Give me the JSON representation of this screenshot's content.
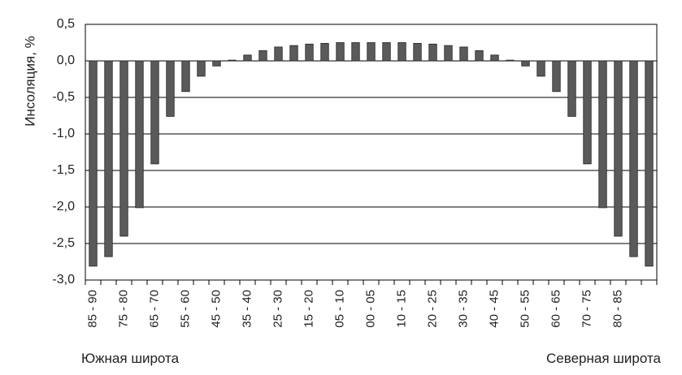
{
  "chart_data": {
    "type": "bar",
    "title": "",
    "ylabel": "Инсоляция, %",
    "xlabel": "",
    "ylim": [
      -3.0,
      0.5
    ],
    "yticks": [
      0.5,
      0.0,
      -0.5,
      -1.0,
      -1.5,
      -2.0,
      -2.5,
      -3.0
    ],
    "ytick_labels": [
      "0,5",
      "0,0",
      "-0,5",
      "-1,0",
      "-1,5",
      "-2,0",
      "-2,5",
      "-3,0"
    ],
    "grid": true,
    "bar_color": "#5a5a5a",
    "tick_labels": [
      "85 - 90",
      "75 - 80",
      "65 - 70",
      "55 - 60",
      "45 - 50",
      "35 - 40",
      "25 - 30",
      "15 - 20",
      "05 - 10",
      "00 - 05",
      "10 - 15",
      "20 - 25",
      "30 - 35",
      "40 - 45",
      "50 - 55",
      "60 - 65",
      "70 - 75",
      "80 - 85"
    ],
    "values": [
      -2.81,
      -2.68,
      -2.4,
      -2.01,
      -1.41,
      -0.76,
      -0.42,
      -0.21,
      -0.07,
      0.01,
      0.08,
      0.14,
      0.19,
      0.21,
      0.23,
      0.24,
      0.25,
      0.25,
      0.25,
      0.25,
      0.25,
      0.24,
      0.23,
      0.21,
      0.19,
      0.14,
      0.08,
      0.01,
      -0.07,
      -0.21,
      -0.42,
      -0.76,
      -1.41,
      -2.01,
      -2.4,
      -2.68,
      -2.81
    ],
    "left_note": "Южная широта",
    "right_note": "Северная широта"
  }
}
